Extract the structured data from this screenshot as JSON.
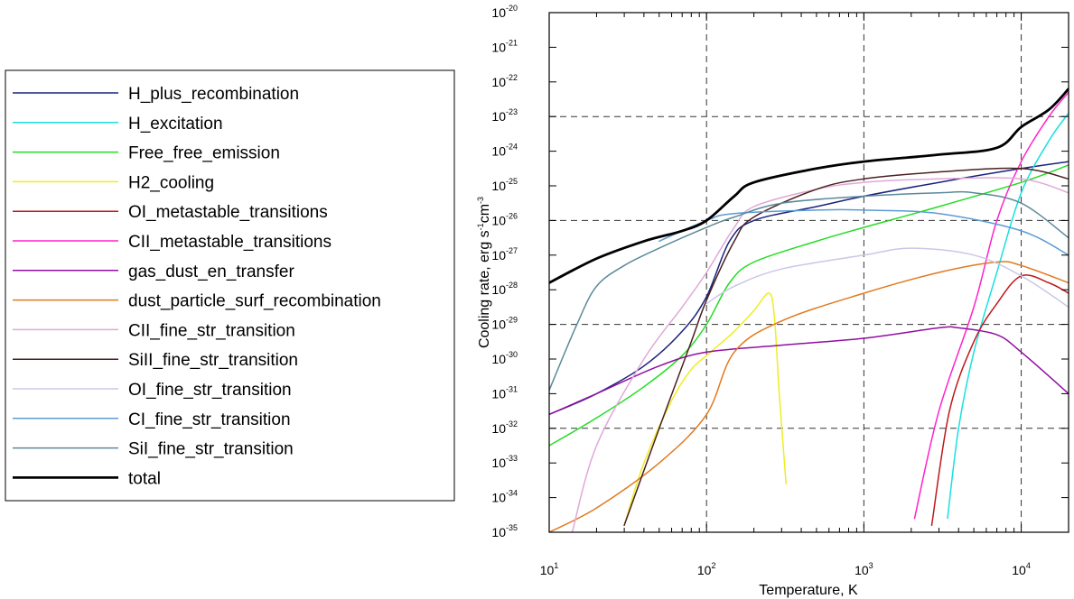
{
  "chart_data": {
    "type": "line",
    "title": "",
    "xlabel": "Temperature, K",
    "ylabel": "Cooling rate, erg s-1cm-3",
    "ylabel_parts": [
      "Cooling rate, erg s",
      "-1",
      "cm",
      "-3"
    ],
    "xscale": "log",
    "yscale": "log",
    "xlim": [
      10,
      20000
    ],
    "ylim": [
      1e-35,
      1e-20
    ],
    "x_ticks": [
      {
        "base": "10",
        "exp": "1"
      },
      {
        "base": "10",
        "exp": "2"
      },
      {
        "base": "10",
        "exp": "3"
      },
      {
        "base": "10",
        "exp": "4"
      }
    ],
    "y_ticks": [
      {
        "base": "10",
        "exp": "-35"
      },
      {
        "base": "10",
        "exp": "-34"
      },
      {
        "base": "10",
        "exp": "-33"
      },
      {
        "base": "10",
        "exp": "-32"
      },
      {
        "base": "10",
        "exp": "-31"
      },
      {
        "base": "10",
        "exp": "-30"
      },
      {
        "base": "10",
        "exp": "-29"
      },
      {
        "base": "10",
        "exp": "-28"
      },
      {
        "base": "10",
        "exp": "-27"
      },
      {
        "base": "10",
        "exp": "-26"
      },
      {
        "base": "10",
        "exp": "-25"
      },
      {
        "base": "10",
        "exp": "-24"
      },
      {
        "base": "10",
        "exp": "-23"
      },
      {
        "base": "10",
        "exp": "-22"
      },
      {
        "base": "10",
        "exp": "-21"
      },
      {
        "base": "10",
        "exp": "-20"
      }
    ],
    "grid": "dashed at x = 1e2, 1e3, 1e4 and y = 1e-32, 1e-29, 1e-26, 1e-23",
    "legend_position": "left, outside plot",
    "series": [
      {
        "name": "H_plus_recombination",
        "color": "#1a237e",
        "width": 1.5,
        "points": [
          [
            10,
            -31.6
          ],
          [
            20,
            -31.0
          ],
          [
            40,
            -30.2
          ],
          [
            70,
            -29.2
          ],
          [
            100,
            -28.2
          ],
          [
            140,
            -26.6
          ],
          [
            200,
            -26.0
          ],
          [
            500,
            -25.6
          ],
          [
            1000,
            -25.3
          ],
          [
            3000,
            -24.9
          ],
          [
            10000,
            -24.5
          ],
          [
            20000,
            -24.3
          ]
        ]
      },
      {
        "name": "H_excitation",
        "color": "#18e0e0",
        "width": 1.5,
        "points": [
          [
            3400,
            -34.6
          ],
          [
            4000,
            -32.0
          ],
          [
            5000,
            -29.8
          ],
          [
            7000,
            -27.5
          ],
          [
            10000,
            -25.2
          ],
          [
            15000,
            -23.7
          ],
          [
            20000,
            -22.9
          ]
        ]
      },
      {
        "name": "Free_free_emission",
        "color": "#22dd22",
        "width": 1.5,
        "points": [
          [
            10,
            -32.5
          ],
          [
            20,
            -31.7
          ],
          [
            40,
            -30.8
          ],
          [
            70,
            -29.9
          ],
          [
            100,
            -29.0
          ],
          [
            140,
            -27.8
          ],
          [
            200,
            -27.2
          ],
          [
            500,
            -26.6
          ],
          [
            1000,
            -26.2
          ],
          [
            3000,
            -25.6
          ],
          [
            10000,
            -24.9
          ],
          [
            20000,
            -24.4
          ]
        ]
      },
      {
        "name": "H2_cooling",
        "color": "#eeee22",
        "width": 1.5,
        "points": [
          [
            30,
            -34.8
          ],
          [
            40,
            -33.0
          ],
          [
            60,
            -31.2
          ],
          [
            80,
            -30.3
          ],
          [
            100,
            -29.9
          ],
          [
            150,
            -29.2
          ],
          [
            200,
            -28.6
          ],
          [
            250,
            -28.1
          ],
          [
            270,
            -28.8
          ],
          [
            290,
            -31.0
          ],
          [
            320,
            -33.6
          ]
        ]
      },
      {
        "name": "OI_metastable_transitions",
        "color": "#c01818",
        "width": 1.5,
        "points": [
          [
            2700,
            -34.8
          ],
          [
            3500,
            -31.5
          ],
          [
            5000,
            -29.5
          ],
          [
            7000,
            -28.4
          ],
          [
            10000,
            -27.6
          ],
          [
            15000,
            -27.8
          ],
          [
            20000,
            -28.1
          ]
        ]
      },
      {
        "name": "CII_metastable_transitions",
        "color": "#ff22cc",
        "width": 1.5,
        "points": [
          [
            2100,
            -34.6
          ],
          [
            3000,
            -31.5
          ],
          [
            5000,
            -28.5
          ],
          [
            7000,
            -26.0
          ],
          [
            10000,
            -24.3
          ],
          [
            15000,
            -23.0
          ],
          [
            20000,
            -22.3
          ]
        ]
      },
      {
        "name": "gas_dust_en_transfer",
        "color": "#9010a0",
        "width": 1.5,
        "points": [
          [
            10,
            -31.6
          ],
          [
            20,
            -31.0
          ],
          [
            50,
            -30.2
          ],
          [
            100,
            -29.8
          ],
          [
            300,
            -29.6
          ],
          [
            1000,
            -29.4
          ],
          [
            3000,
            -29.1
          ],
          [
            4000,
            -29.1
          ],
          [
            7000,
            -29.3
          ],
          [
            10000,
            -29.8
          ],
          [
            20000,
            -31.0
          ]
        ]
      },
      {
        "name": "dust_particle_surf_recombination",
        "color": "#e07a20",
        "width": 1.5,
        "points": [
          [
            10,
            -35.0
          ],
          [
            20,
            -34.3
          ],
          [
            50,
            -33.0
          ],
          [
            100,
            -31.6
          ],
          [
            150,
            -29.8
          ],
          [
            300,
            -28.9
          ],
          [
            1000,
            -28.1
          ],
          [
            3000,
            -27.5
          ],
          [
            7000,
            -27.2
          ],
          [
            10000,
            -27.3
          ],
          [
            20000,
            -27.8
          ]
        ]
      },
      {
        "name": "CII_fine_str_transition",
        "color": "#e0a8d8",
        "width": 1.5,
        "points": [
          [
            14,
            -35.0
          ],
          [
            20,
            -32.5
          ],
          [
            40,
            -30.0
          ],
          [
            70,
            -28.5
          ],
          [
            100,
            -27.5
          ],
          [
            150,
            -26.2
          ],
          [
            200,
            -25.6
          ],
          [
            500,
            -25.1
          ],
          [
            1000,
            -24.9
          ],
          [
            3000,
            -24.8
          ],
          [
            10000,
            -24.8
          ],
          [
            20000,
            -25.2
          ]
        ]
      },
      {
        "name": "SiII_fine_str_transition",
        "color": "#4a2020",
        "width": 1.5,
        "points": [
          [
            30,
            -34.8
          ],
          [
            50,
            -32.0
          ],
          [
            80,
            -29.5
          ],
          [
            100,
            -28.3
          ],
          [
            150,
            -26.6
          ],
          [
            200,
            -25.9
          ],
          [
            500,
            -25.1
          ],
          [
            1000,
            -24.8
          ],
          [
            3000,
            -24.6
          ],
          [
            10000,
            -24.5
          ],
          [
            20000,
            -24.8
          ]
        ]
      },
      {
        "name": "OI_fine_str_transition",
        "color": "#c8c8e8",
        "width": 1.5,
        "points": [
          [
            100,
            -28.4
          ],
          [
            150,
            -27.9
          ],
          [
            300,
            -27.4
          ],
          [
            1000,
            -27.0
          ],
          [
            2000,
            -26.8
          ],
          [
            5000,
            -27.0
          ],
          [
            10000,
            -27.6
          ],
          [
            20000,
            -28.5
          ]
        ]
      },
      {
        "name": "CI_fine_str_transition",
        "color": "#5b9bd5",
        "width": 1.5,
        "points": [
          [
            50,
            -26.6
          ],
          [
            100,
            -26.0
          ],
          [
            150,
            -25.8
          ],
          [
            500,
            -25.7
          ],
          [
            1000,
            -25.7
          ],
          [
            3000,
            -25.8
          ],
          [
            10000,
            -26.3
          ],
          [
            20000,
            -27.0
          ]
        ]
      },
      {
        "name": "SiI_fine_str_transition",
        "color": "#5b8a9a",
        "width": 1.5,
        "points": [
          [
            10,
            -30.9
          ],
          [
            15,
            -29.0
          ],
          [
            20,
            -27.9
          ],
          [
            30,
            -27.3
          ],
          [
            50,
            -26.8
          ],
          [
            100,
            -26.2
          ],
          [
            150,
            -25.9
          ],
          [
            300,
            -25.5
          ],
          [
            1000,
            -25.3
          ],
          [
            3000,
            -25.2
          ],
          [
            5000,
            -25.2
          ],
          [
            10000,
            -25.5
          ],
          [
            20000,
            -26.5
          ]
        ]
      },
      {
        "name": "total",
        "color": "#000000",
        "width": 2.8,
        "points": [
          [
            10,
            -27.8
          ],
          [
            20,
            -27.1
          ],
          [
            40,
            -26.6
          ],
          [
            70,
            -26.3
          ],
          [
            100,
            -26.0
          ],
          [
            150,
            -25.3
          ],
          [
            200,
            -24.9
          ],
          [
            500,
            -24.5
          ],
          [
            1000,
            -24.3
          ],
          [
            3000,
            -24.1
          ],
          [
            7000,
            -23.9
          ],
          [
            10000,
            -23.3
          ],
          [
            15000,
            -22.8
          ],
          [
            20000,
            -22.2
          ]
        ]
      }
    ]
  }
}
